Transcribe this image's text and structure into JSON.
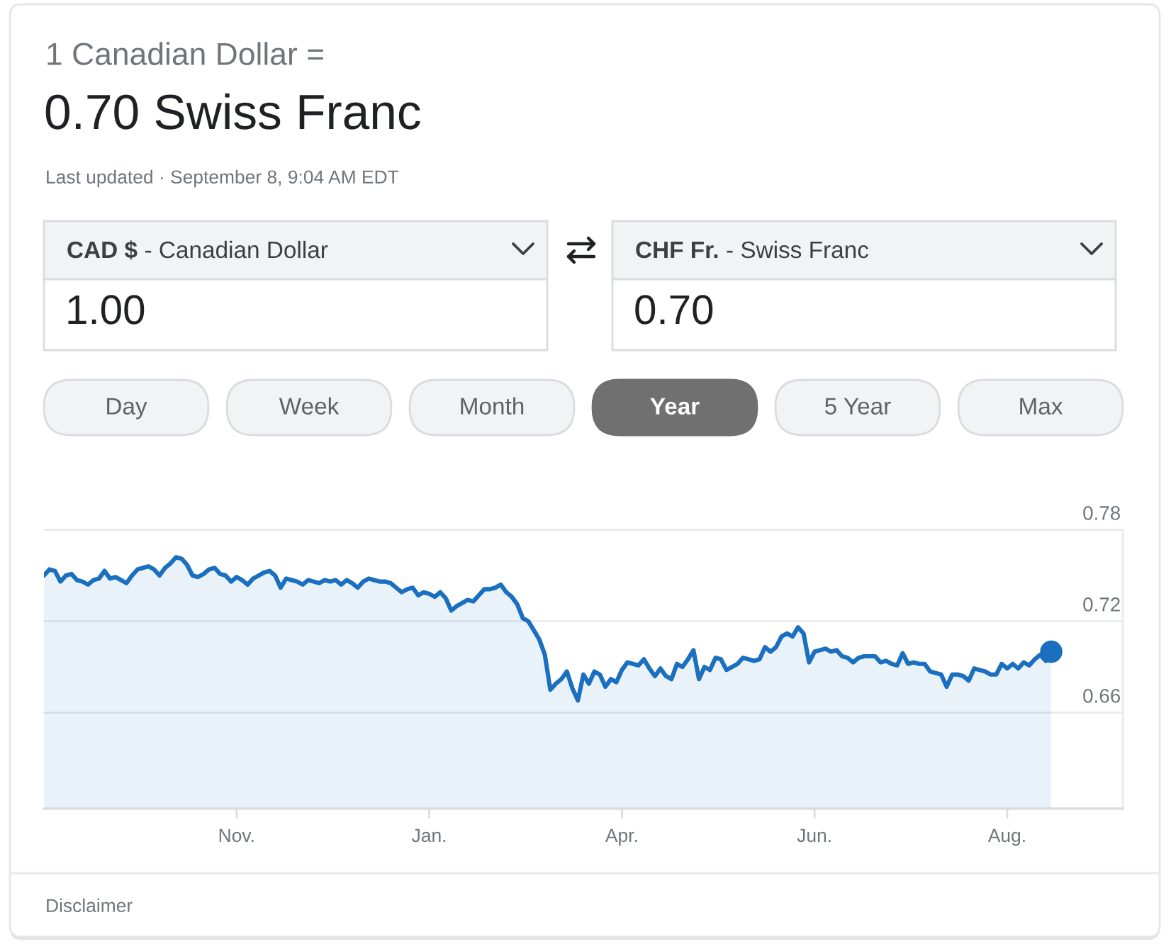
{
  "chart_data": {
    "type": "area",
    "title": "1 Canadian Dollar =",
    "subtitle": "0.70 Swiss Franc",
    "annotations": [
      "Last updated · September 8, 9:04 AM EDT",
      "CAD $",
      "- Canadian Dollar",
      "1.00",
      "CHF Fr.",
      "- Swiss Franc",
      "0.70",
      "Day",
      "Week",
      "Month",
      "Year",
      "5 Year",
      "Max",
      "Disclaimer"
    ],
    "categories": [
      null,
      null,
      null,
      null,
      null,
      null,
      null,
      null,
      null,
      null,
      null,
      null,
      null,
      null,
      null,
      null,
      null,
      null,
      null,
      null,
      null,
      null,
      null,
      null,
      null,
      null,
      null,
      null,
      null,
      null,
      null,
      null,
      null,
      null,
      null,
      "Nov.",
      null,
      null,
      null,
      null,
      null,
      null,
      null,
      null,
      null,
      null,
      null,
      null,
      null,
      null,
      null,
      null,
      null,
      null,
      null,
      null,
      null,
      null,
      null,
      null,
      null,
      null,
      null,
      null,
      null,
      null,
      null,
      null,
      null,
      null,
      "Jan.",
      null,
      null,
      null,
      null,
      null,
      null,
      null,
      null,
      null,
      null,
      null,
      null,
      null,
      null,
      null,
      null,
      null,
      null,
      null,
      null,
      null,
      null,
      null,
      null,
      null,
      null,
      null,
      null,
      null,
      null,
      null,
      null,
      null,
      null,
      "Apr.",
      null,
      null,
      null,
      null,
      null,
      null,
      null,
      null,
      null,
      null,
      null,
      null,
      null,
      null,
      null,
      null,
      null,
      null,
      null,
      null,
      null,
      null,
      null,
      null,
      null,
      null,
      null,
      null,
      null,
      null,
      null,
      null,
      null,
      null,
      "Jun.",
      null,
      null,
      null,
      null,
      null,
      null,
      null,
      null,
      null,
      null,
      null,
      null,
      null,
      null,
      null,
      null,
      null,
      null,
      null,
      null,
      null,
      null,
      null,
      null,
      null,
      null,
      null,
      null,
      null,
      null,
      null,
      null,
      null,
      null,
      "Aug.",
      null,
      null,
      null,
      null,
      null,
      null,
      null,
      null,
      null,
      null,
      null,
      null,
      null,
      null,
      null,
      null,
      null,
      null,
      null,
      null,
      null
    ],
    "series": [
      {
        "color": "#1a6fbf",
        "values": [
          0.75,
          0.754,
          0.753,
          0.746,
          0.75,
          0.751,
          0.747,
          0.746,
          0.744,
          0.747,
          0.748,
          0.753,
          0.748,
          0.749,
          0.747,
          0.745,
          0.75,
          0.754,
          0.755,
          0.756,
          0.754,
          0.75,
          0.755,
          0.758,
          0.762,
          0.761,
          0.757,
          0.75,
          0.749,
          0.751,
          0.754,
          0.755,
          0.751,
          0.75,
          0.746,
          0.749,
          0.747,
          0.744,
          0.748,
          0.75,
          0.752,
          0.753,
          0.75,
          0.742,
          0.748,
          0.747,
          0.746,
          0.744,
          0.747,
          0.746,
          0.745,
          0.747,
          0.746,
          0.747,
          0.744,
          0.747,
          0.745,
          0.742,
          0.746,
          0.748,
          0.747,
          0.746,
          0.746,
          0.745,
          0.742,
          0.739,
          0.741,
          0.742,
          0.737,
          0.739,
          0.738,
          0.736,
          0.739,
          0.735,
          0.727,
          0.73,
          0.732,
          0.734,
          0.733,
          0.737,
          0.741,
          0.741,
          0.742,
          0.744,
          0.739,
          0.736,
          0.731,
          0.722,
          0.72,
          0.714,
          0.708,
          0.698,
          0.675,
          0.679,
          0.682,
          0.687,
          0.676,
          0.668,
          0.685,
          0.679,
          0.687,
          0.685,
          0.677,
          0.682,
          0.68,
          0.688,
          0.693,
          0.692,
          0.691,
          0.695,
          0.689,
          0.684,
          0.689,
          0.684,
          0.682,
          0.692,
          0.69,
          0.695,
          0.701,
          0.682,
          0.69,
          0.688,
          0.696,
          0.695,
          0.688,
          0.69,
          0.692,
          0.696,
          0.695,
          0.694,
          0.695,
          0.703,
          0.7,
          0.703,
          0.71,
          0.712,
          0.71,
          0.716,
          0.712,
          0.693,
          0.7,
          0.701,
          0.702,
          0.7,
          0.701,
          0.697,
          0.696,
          0.693,
          0.696,
          0.697,
          0.697,
          0.697,
          0.693,
          0.694,
          0.692,
          0.691,
          0.699,
          0.692,
          0.693,
          0.692,
          0.692,
          0.687,
          0.686,
          0.685,
          0.677,
          0.685,
          0.685,
          0.684,
          0.681,
          0.689,
          0.688,
          0.687,
          0.685,
          0.685,
          0.692,
          0.689,
          0.692,
          0.689,
          0.693,
          0.691,
          0.695,
          0.698,
          0.694,
          0.7,
          null,
          null,
          null,
          null,
          null,
          null,
          null,
          null,
          null,
          null,
          null,
          null,
          null
        ]
      },
      {
        "type": "scatter",
        "color": "#1a6fbf",
        "marker": "circle",
        "values": [
          null,
          null,
          null,
          null,
          null,
          null,
          null,
          null,
          null,
          null,
          null,
          null,
          null,
          null,
          null,
          null,
          null,
          null,
          null,
          null,
          null,
          null,
          null,
          null,
          null,
          null,
          null,
          null,
          null,
          null,
          null,
          null,
          null,
          null,
          null,
          null,
          null,
          null,
          null,
          null,
          null,
          null,
          null,
          null,
          null,
          null,
          null,
          null,
          null,
          null,
          null,
          null,
          null,
          null,
          null,
          null,
          null,
          null,
          null,
          null,
          null,
          null,
          null,
          null,
          null,
          null,
          null,
          null,
          null,
          null,
          null,
          null,
          null,
          null,
          null,
          null,
          null,
          null,
          null,
          null,
          null,
          null,
          null,
          null,
          null,
          null,
          null,
          null,
          null,
          null,
          null,
          null,
          null,
          null,
          null,
          null,
          null,
          null,
          null,
          null,
          null,
          null,
          null,
          null,
          null,
          null,
          null,
          null,
          null,
          null,
          null,
          null,
          null,
          null,
          null,
          null,
          null,
          null,
          null,
          null,
          null,
          null,
          null,
          null,
          null,
          null,
          null,
          null,
          null,
          null,
          null,
          null,
          null,
          null,
          null,
          null,
          null,
          null,
          null,
          null,
          null,
          null,
          null,
          null,
          null,
          null,
          null,
          null,
          null,
          null,
          null,
          null,
          null,
          null,
          null,
          null,
          null,
          null,
          null,
          null,
          null,
          null,
          null,
          null,
          null,
          null,
          null,
          null,
          null,
          null,
          null,
          null,
          null,
          null,
          null,
          null,
          null,
          null,
          null,
          null,
          null,
          null,
          null,
          0.7,
          null,
          null,
          null,
          null,
          null,
          null,
          null,
          null,
          null,
          null,
          null,
          null,
          null
        ]
      }
    ],
    "ylim": [
      0.597,
      0.78
    ],
    "yticks": [
      0.66,
      0.72,
      0.78
    ],
    "grid": "y"
  }
}
